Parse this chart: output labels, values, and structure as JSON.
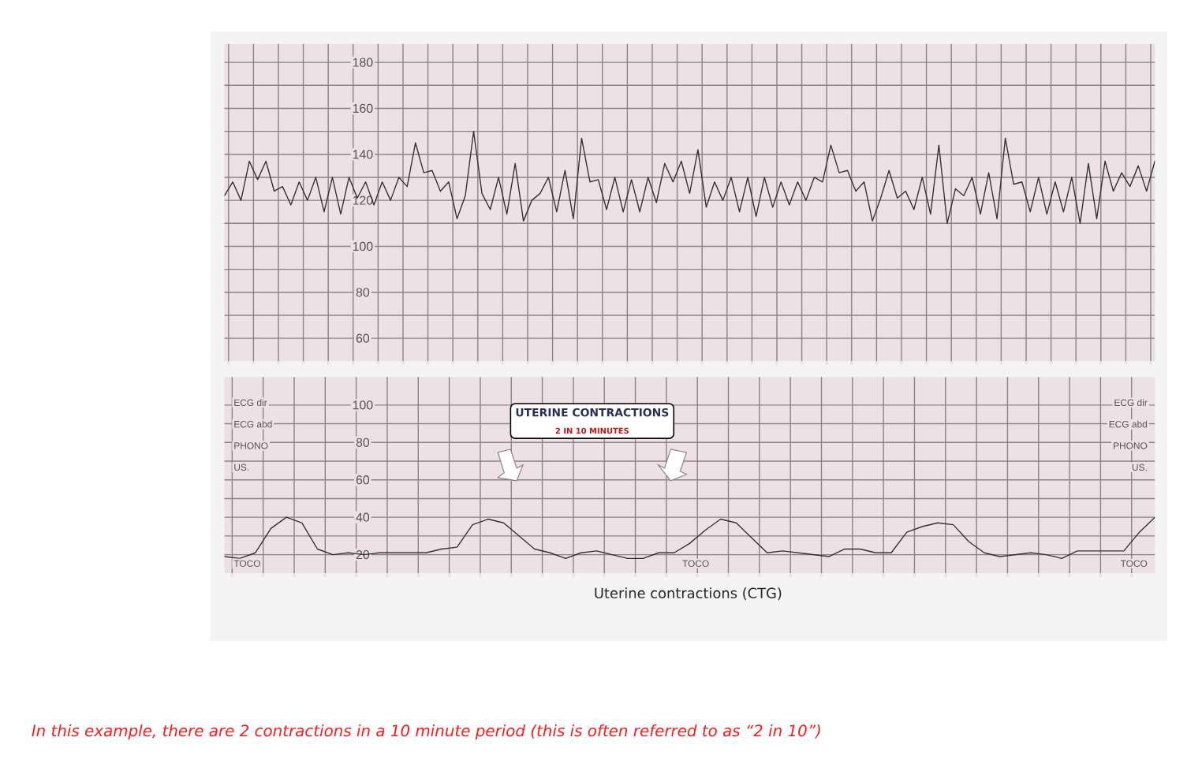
{
  "chart_data": [
    {
      "type": "line",
      "categories": [
        null,
        null,
        null,
        null,
        null,
        null,
        null,
        null,
        null,
        null,
        null,
        null,
        null,
        null,
        null,
        null,
        null,
        null,
        null,
        null,
        null,
        null,
        null,
        null,
        null,
        null,
        null,
        null,
        null,
        null,
        null,
        null,
        null,
        null,
        null,
        null,
        null,
        null,
        null,
        null,
        null,
        null,
        null,
        null,
        null,
        null,
        null,
        null,
        null,
        null,
        null,
        null,
        null,
        null,
        null,
        null,
        null,
        null,
        null,
        null,
        null,
        null,
        null,
        null,
        null,
        null,
        null,
        null,
        null,
        null,
        null,
        null,
        null,
        null,
        null,
        null,
        null,
        null,
        null,
        null,
        null,
        null,
        null,
        null,
        null,
        null,
        null,
        null,
        null,
        null,
        null,
        null,
        null,
        null,
        null,
        null,
        null,
        null,
        null,
        null,
        null,
        null,
        null,
        null,
        null,
        null,
        null,
        null,
        null,
        null,
        null,
        null,
        null
      ],
      "ylim": [
        50,
        188
      ],
      "yticks": [
        60,
        80,
        100,
        120,
        140,
        160,
        180
      ],
      "grid": true,
      "tick_labels": "y",
      "marker": "none",
      "series": [
        {
          "color": "#333333",
          "values": [
            122,
            128,
            120,
            137,
            129,
            137,
            124,
            126,
            118,
            128,
            120,
            130,
            115,
            130,
            114,
            130,
            121,
            128,
            118,
            128,
            120,
            130,
            126,
            145,
            132,
            133,
            124,
            128,
            112,
            122,
            150,
            123,
            116,
            130,
            114,
            136,
            111,
            120,
            123,
            130,
            115,
            133,
            112,
            147,
            128,
            129,
            116,
            130,
            115,
            129,
            115,
            130,
            119,
            136,
            128,
            137,
            123,
            142,
            117,
            128,
            120,
            130,
            115,
            130,
            113,
            130,
            117,
            128,
            118,
            128,
            120,
            130,
            128,
            144,
            132,
            133,
            124,
            128,
            111,
            121,
            133,
            121,
            124,
            116,
            130,
            114,
            144,
            110,
            125,
            122,
            130,
            114,
            132,
            112,
            147,
            127,
            128,
            115,
            130,
            114,
            128,
            115,
            130,
            110,
            136,
            112,
            137,
            124,
            132,
            126,
            135,
            124,
            137
          ]
        }
      ]
    },
    {
      "type": "line",
      "categories": [
        null,
        null,
        null,
        null,
        null,
        null,
        null,
        null,
        null,
        null,
        null,
        null,
        null,
        null,
        null,
        null,
        null,
        null,
        null,
        null,
        null,
        null,
        null,
        null,
        null,
        null,
        null,
        null,
        null,
        null,
        null,
        null,
        null,
        null,
        null,
        null,
        null,
        null,
        null,
        null,
        null,
        null,
        null,
        null,
        null,
        null,
        null,
        null,
        null,
        null,
        null,
        null,
        null,
        null,
        null,
        null,
        null,
        null,
        null,
        null,
        null
      ],
      "ylim": [
        10,
        115
      ],
      "yticks": [
        20,
        40,
        60,
        80,
        100
      ],
      "grid": true,
      "tick_labels": "y",
      "marker": "none",
      "series": [
        {
          "color": "#333333",
          "values": [
            19,
            18,
            21,
            34,
            40,
            37,
            23,
            20,
            21,
            20,
            21,
            21,
            21,
            21,
            23,
            24,
            36,
            39,
            37,
            30,
            23,
            21,
            18,
            21,
            22,
            20,
            18,
            18,
            21,
            21,
            26,
            33,
            39,
            37,
            29,
            21,
            22,
            21,
            20,
            19,
            23,
            23,
            21,
            21,
            32,
            35,
            37,
            36,
            27,
            21,
            19,
            20,
            21,
            20,
            18,
            22,
            22,
            22,
            22,
            32,
            40
          ]
        }
      ],
      "annotations": [
        "ECG dir",
        "ECG abd",
        "PHONO",
        "US.",
        "TOCO",
        "ECG dir",
        "ECG abd",
        "PHONO",
        "US.",
        "TOCO",
        "TOCO",
        "UTERINE CONTRACTIONS",
        "2 IN 10 MINUTES",
        "Uterine contractions (CTG)",
        "In this example, there are 2 contractions in a 10 minute period (this is often referred to as “2 in 10”)"
      ]
    }
  ]
}
